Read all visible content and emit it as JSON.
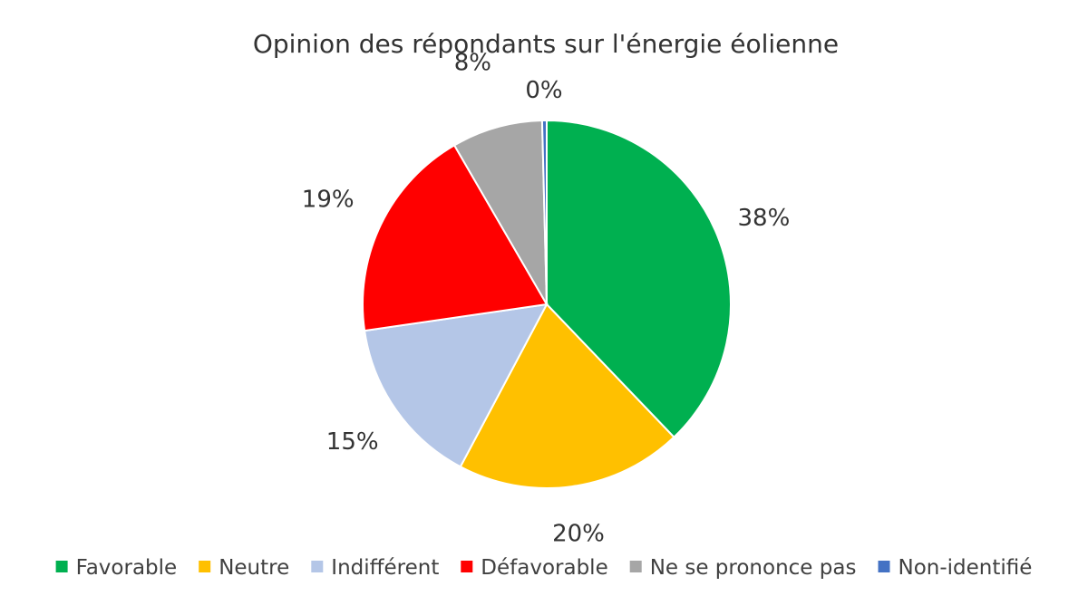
{
  "chart_data": {
    "type": "pie",
    "title": "Opinion des répondants sur l'énergie éolienne",
    "categories": [
      "Favorable",
      "Neutre",
      "Indifférent",
      "Défavorable",
      "Ne se prononce pas",
      "Non-identifié"
    ],
    "values": [
      38,
      20,
      15,
      19,
      8,
      0.4
    ],
    "labels": [
      "38%",
      "20%",
      "15%",
      "19%",
      "8%",
      "0%"
    ],
    "colors": [
      "#00B050",
      "#FFC000",
      "#B4C6E7",
      "#FF0000",
      "#A6A6A6",
      "#4472C4"
    ],
    "start_angle": "12 o'clock",
    "direction": "clockwise",
    "legend_position": "bottom"
  }
}
